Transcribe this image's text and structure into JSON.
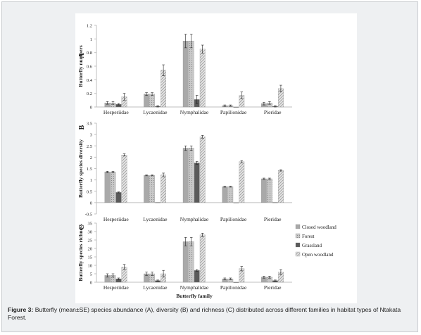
{
  "caption": {
    "label": "Figure 3:",
    "text": "Butterfly (mean±SE) species abundance (A), diversity (B) and richness (C) distributed across different families in habitat types of Ntakata Forest."
  },
  "colors": {
    "closed_woodland": "#a9a9a9",
    "forest": "#c8c8c8",
    "grassland": "#5a5a5a",
    "open_woodland": "#dcdcdc",
    "axis": "#bfbfbf"
  },
  "chart_data": [
    {
      "type": "bar",
      "panel": "A",
      "ylabel": "Butterfly numbers",
      "ylim": [
        0,
        1.2
      ],
      "ticks": [
        "0",
        "0.2",
        "0.4",
        "0.6",
        "0.8",
        "1",
        "1.2"
      ],
      "tick_values": [
        0,
        0.2,
        0.4,
        0.6,
        0.8,
        1,
        1.2
      ],
      "categories": [
        "Hesperiidae",
        "Lycaenidae",
        "Nymphalidae",
        "Papilionidae",
        "Pieridae"
      ],
      "series": [
        {
          "name": "Closed woodland",
          "values": [
            0.06,
            0.19,
            0.97,
            0.02,
            0.05
          ],
          "errors": [
            0.02,
            0.02,
            0.1,
            0.01,
            0.02
          ]
        },
        {
          "name": "Forest",
          "values": [
            0.06,
            0.19,
            0.97,
            0.02,
            0.06
          ],
          "errors": [
            0.02,
            0.02,
            0.1,
            0.01,
            0.02
          ]
        },
        {
          "name": "Grassland",
          "values": [
            0.04,
            0.01,
            0.11,
            0.0,
            0.01
          ],
          "errors": [
            0.01,
            0.01,
            0.06,
            0.0,
            0.01
          ]
        },
        {
          "name": "Open woodland",
          "values": [
            0.15,
            0.54,
            0.85,
            0.17,
            0.27
          ],
          "errors": [
            0.05,
            0.08,
            0.06,
            0.05,
            0.05
          ]
        }
      ]
    },
    {
      "type": "bar",
      "panel": "B",
      "ylabel": "Butterfly species diversity",
      "ylim": [
        -0.5,
        3.5
      ],
      "ticks": [
        "-0.5",
        "0",
        "0.5",
        "1",
        "1.5",
        "2",
        "2.5",
        "3",
        "3.5"
      ],
      "tick_values": [
        -0.5,
        0,
        0.5,
        1,
        1.5,
        2,
        2.5,
        3,
        3.5
      ],
      "categories": [
        "Hesperiidae",
        "Lycaenidae",
        "Nymphalidae",
        "Papilionidae",
        "Pieridae"
      ],
      "series": [
        {
          "name": "Closed woodland",
          "values": [
            1.35,
            1.2,
            2.4,
            0.7,
            1.05
          ],
          "errors": [
            0.03,
            0.02,
            0.1,
            0.02,
            0.03
          ]
        },
        {
          "name": "Forest",
          "values": [
            1.35,
            1.2,
            2.4,
            0.7,
            1.05
          ],
          "errors": [
            0.03,
            0.02,
            0.1,
            0.02,
            0.03
          ]
        },
        {
          "name": "Grassland",
          "values": [
            0.45,
            0.01,
            1.75,
            0.0,
            0.01
          ],
          "errors": [
            0.02,
            0.0,
            0.06,
            0.0,
            0.0
          ]
        },
        {
          "name": "Open woodland",
          "values": [
            2.1,
            1.22,
            2.9,
            1.8,
            1.42
          ],
          "errors": [
            0.05,
            0.08,
            0.06,
            0.05,
            0.03
          ]
        }
      ]
    },
    {
      "type": "bar",
      "panel": "C",
      "ylabel": "Butterfly species richness",
      "xlabel": "Butterfly family",
      "ylim": [
        0,
        35
      ],
      "ticks": [
        "0",
        "5",
        "10",
        "15",
        "20",
        "25",
        "30",
        "35"
      ],
      "tick_values": [
        0,
        5,
        10,
        15,
        20,
        25,
        30,
        35
      ],
      "categories": [
        "Hesperiidae",
        "Lycaenidae",
        "Nymphalidae",
        "Papilionidae",
        "Pieridae"
      ],
      "legend_position": "right",
      "series": [
        {
          "name": "Closed woodland",
          "values": [
            4,
            5,
            24,
            2,
            3
          ],
          "errors": [
            1,
            1,
            2.5,
            0.5,
            0.6
          ]
        },
        {
          "name": "Forest",
          "values": [
            4,
            5,
            24,
            2,
            3
          ],
          "errors": [
            1,
            1,
            2.5,
            0.5,
            0.6
          ]
        },
        {
          "name": "Grassland",
          "values": [
            2,
            1,
            7,
            0,
            1
          ],
          "errors": [
            0.5,
            0.3,
            0.5,
            0,
            0.3
          ]
        },
        {
          "name": "Open woodland",
          "values": [
            9,
            5,
            28,
            8,
            6
          ],
          "errors": [
            1.5,
            2,
            1,
            1.3,
            1.5
          ]
        }
      ]
    }
  ]
}
